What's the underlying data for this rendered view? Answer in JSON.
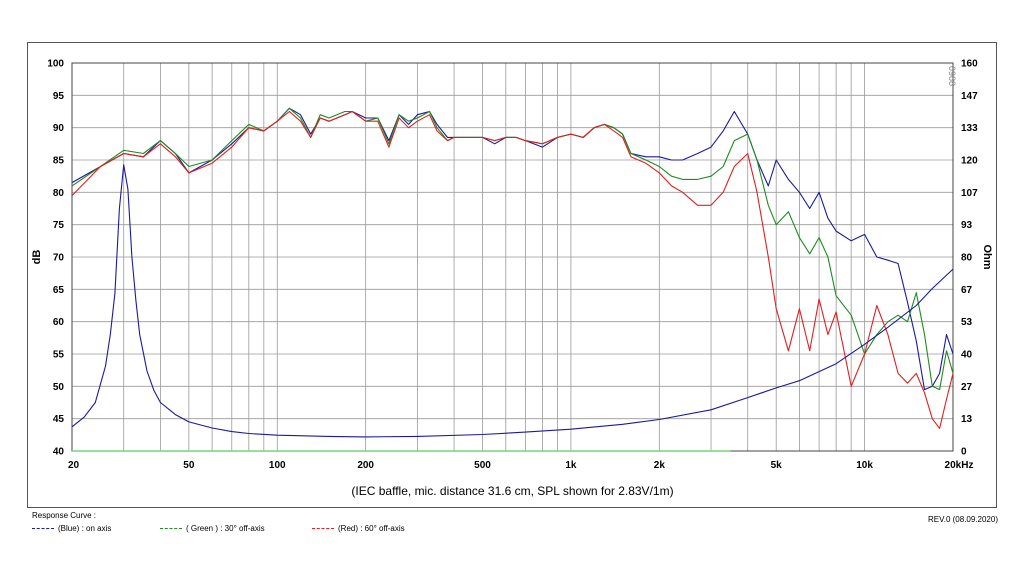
{
  "chart_data": {
    "type": "line",
    "title": "(IEC baffle, mic. distance 31.6 cm, SPL shown for 2.83V/1m)",
    "xlabel": "",
    "ylabel": "dB",
    "y2label": "Ohm",
    "x_scale": "log",
    "xlim": [
      20,
      20000
    ],
    "ylim": [
      40,
      100
    ],
    "y2lim": [
      0,
      160
    ],
    "grid": true,
    "x_ticks": [
      "20",
      "50",
      "100",
      "200",
      "500",
      "1k",
      "2k",
      "5k",
      "10k",
      "20kHz"
    ],
    "y_ticks": [
      "100",
      "95",
      "90",
      "85",
      "80",
      "75",
      "70",
      "65",
      "60",
      "55",
      "50",
      "45",
      "40"
    ],
    "y2_ticks": [
      "160",
      "147",
      "133",
      "120",
      "107",
      "93",
      "80",
      "67",
      "53",
      "40",
      "27",
      "13",
      "0"
    ],
    "watermark": "0988",
    "series": [
      {
        "name": "(Blue) : on axis",
        "color": "#1a1aa0",
        "x": [
          20,
          25,
          30,
          35,
          40,
          45,
          50,
          60,
          70,
          80,
          90,
          100,
          110,
          120,
          130,
          140,
          150,
          170,
          180,
          200,
          220,
          240,
          260,
          280,
          300,
          330,
          350,
          380,
          400,
          450,
          500,
          550,
          600,
          650,
          700,
          800,
          900,
          1000,
          1100,
          1200,
          1300,
          1400,
          1500,
          1600,
          1800,
          2000,
          2200,
          2400,
          2700,
          3000,
          3300,
          3600,
          4000,
          4300,
          4700,
          5000,
          5500,
          6000,
          6500,
          7000,
          7500,
          8000,
          9000,
          10000,
          11000,
          12000,
          13000,
          14000,
          15000,
          16000,
          17000,
          18000,
          19000,
          20000
        ],
        "y": [
          81.5,
          84,
          86,
          85.5,
          88,
          86,
          83,
          85,
          87.5,
          90,
          89.5,
          91,
          93,
          92,
          89,
          91.5,
          91,
          92,
          92.5,
          91.5,
          91.5,
          88,
          92,
          90.5,
          92,
          92.5,
          90.5,
          88.5,
          88.5,
          88.5,
          88.5,
          87.5,
          88.5,
          88.5,
          88,
          87,
          88.5,
          89,
          88.5,
          90,
          90.5,
          90,
          89,
          86,
          85.5,
          85.5,
          85,
          85,
          86,
          87,
          89.5,
          92.5,
          89,
          85,
          81,
          85,
          82,
          80,
          77.5,
          80,
          76,
          74,
          72.5,
          73.5,
          70,
          69.5,
          69,
          63,
          57,
          49.5,
          50,
          52,
          58,
          55
        ]
      },
      {
        "name": "( Green ) : 30° off-axis",
        "color": "#1e8c1e",
        "x": [
          20,
          25,
          30,
          35,
          40,
          45,
          50,
          60,
          70,
          80,
          90,
          100,
          110,
          120,
          130,
          140,
          150,
          170,
          180,
          200,
          220,
          240,
          260,
          280,
          300,
          330,
          350,
          380,
          400,
          450,
          500,
          550,
          600,
          650,
          700,
          800,
          900,
          1000,
          1100,
          1200,
          1300,
          1400,
          1500,
          1600,
          1800,
          2000,
          2200,
          2400,
          2700,
          3000,
          3300,
          3600,
          4000,
          4300,
          4700,
          5000,
          5500,
          6000,
          6500,
          7000,
          7500,
          8000,
          9000,
          10000,
          11000,
          12000,
          13000,
          14000,
          15000,
          16000,
          17000,
          18000,
          19000,
          20000
        ],
        "y": [
          81,
          84,
          86.5,
          86,
          88,
          86,
          84,
          85,
          88,
          90.5,
          89.5,
          91,
          93,
          91.5,
          88.5,
          92,
          91.5,
          92.5,
          92.5,
          91,
          91.5,
          87.5,
          92,
          91,
          91.5,
          92.5,
          90,
          88,
          88.5,
          88.5,
          88.5,
          88,
          88.5,
          88.5,
          88,
          87.5,
          88.5,
          89,
          88.5,
          90,
          90.5,
          90,
          89,
          86,
          85,
          84,
          82.5,
          82,
          82,
          82.5,
          84,
          88,
          89,
          85,
          78,
          75,
          77,
          73,
          70.5,
          73,
          70,
          64,
          61,
          55,
          58,
          60,
          61,
          60,
          64.5,
          58,
          50,
          49.5,
          55.5,
          52
        ]
      },
      {
        "name": "(Red) : 60° off-axis",
        "color": "#e0201e",
        "x": [
          20,
          25,
          30,
          35,
          40,
          45,
          50,
          60,
          70,
          80,
          90,
          100,
          110,
          120,
          130,
          140,
          150,
          170,
          180,
          200,
          220,
          240,
          260,
          280,
          300,
          330,
          350,
          380,
          400,
          450,
          500,
          550,
          600,
          650,
          700,
          800,
          900,
          1000,
          1100,
          1200,
          1300,
          1400,
          1500,
          1600,
          1800,
          2000,
          2200,
          2400,
          2700,
          3000,
          3300,
          3600,
          4000,
          4300,
          4700,
          5000,
          5500,
          6000,
          6500,
          7000,
          7500,
          8000,
          9000,
          10000,
          11000,
          12000,
          13000,
          14000,
          15000,
          16000,
          17000,
          18000,
          19000,
          20000
        ],
        "y": [
          79.5,
          84,
          86,
          85.5,
          87.5,
          85.5,
          83,
          84.5,
          87,
          90,
          89.5,
          91,
          92.5,
          91,
          88.5,
          91.5,
          91,
          92,
          92.5,
          91,
          91,
          87,
          91.5,
          90,
          91,
          92,
          89.5,
          88,
          88.5,
          88.5,
          88.5,
          88,
          88.5,
          88.5,
          88,
          87.5,
          88.5,
          89,
          88.5,
          90,
          90.5,
          89.5,
          88.5,
          85.5,
          84.5,
          83,
          81,
          80,
          78,
          78,
          80,
          84,
          86,
          80,
          70,
          62,
          55.5,
          62,
          55.5,
          63.5,
          58,
          61.5,
          50,
          55,
          62.5,
          58,
          52,
          50.5,
          52,
          49,
          45,
          43.5,
          48,
          52
        ]
      },
      {
        "name": "Impedance",
        "axis": "y2",
        "color": "#1a1aa0",
        "x": [
          20,
          22,
          24,
          26,
          27,
          28,
          29,
          30,
          31,
          32,
          33,
          34,
          36,
          38,
          40,
          45,
          50,
          60,
          70,
          80,
          100,
          150,
          200,
          300,
          500,
          700,
          1000,
          1500,
          2000,
          3000,
          4000,
          5000,
          6000,
          8000,
          10000,
          12000,
          15000,
          17000,
          20000
        ],
        "y": [
          10,
          14,
          20,
          35,
          48,
          65,
          100,
          118,
          108,
          80,
          62,
          48,
          33,
          25,
          20,
          15,
          12,
          9.5,
          8,
          7.2,
          6.5,
          6,
          5.8,
          6,
          6.8,
          7.8,
          9,
          11,
          13,
          17,
          22,
          26,
          29,
          36,
          44,
          51,
          60,
          67,
          75
        ]
      },
      {
        "name": "Reference",
        "axis": "y2",
        "color": "#7ad47a",
        "x": [
          20,
          3500
        ],
        "y": [
          0,
          0
        ]
      }
    ]
  },
  "legend": {
    "title": "Response Curve :",
    "items": [
      {
        "label": "(Blue)  : on axis",
        "color": "#1a1aa0"
      },
      {
        "label": "( Green ) : 30° off-axis",
        "color": "#1e8c1e"
      },
      {
        "label": "(Red) : 60° off-axis",
        "color": "#e0201e"
      }
    ]
  },
  "revision": "REV.0 (08.09.2020)"
}
